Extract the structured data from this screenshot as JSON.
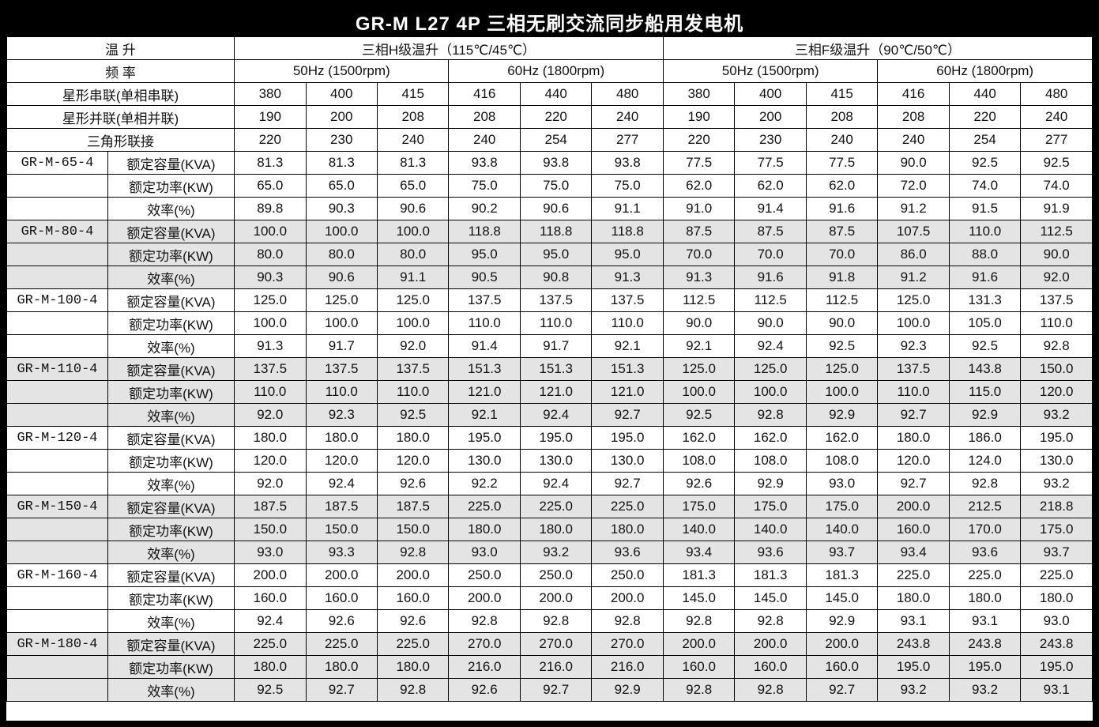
{
  "title": "GR-M L27 4P 三相无刷交流同步船用发电机",
  "colors": {
    "frame": "#000000",
    "title_bg": "#000000",
    "title_fg": "#ffffff",
    "row_base": "#ffffff",
    "row_alt": "#e4e4e4",
    "border": "#000000"
  },
  "header": {
    "temp_rise_label": "温    升",
    "freq_label": "频    率",
    "h_class_label": "三相H级温升（115℃/45℃）",
    "f_class_label": "三相F级温升（90℃/50℃）",
    "freq_groups": [
      "50Hz (1500rpm)",
      "60Hz (1800rpm)",
      "50Hz (1500rpm)",
      "60Hz (1800rpm)"
    ]
  },
  "connection_rows": [
    {
      "label": "星形串联(单相串联)",
      "values": [
        "380",
        "400",
        "415",
        "416",
        "440",
        "480",
        "380",
        "400",
        "415",
        "416",
        "440",
        "480"
      ]
    },
    {
      "label": "星形并联(单相并联)",
      "values": [
        "190",
        "200",
        "208",
        "208",
        "220",
        "240",
        "190",
        "200",
        "208",
        "208",
        "220",
        "240"
      ]
    },
    {
      "label": "三角形联接",
      "values": [
        "220",
        "230",
        "240",
        "240",
        "254",
        "277",
        "220",
        "230",
        "240",
        "240",
        "254",
        "277"
      ]
    }
  ],
  "row_labels": {
    "kva": "额定容量(KVA)",
    "kw": "额定功率(KW)",
    "eff": "效率(%)"
  },
  "models": [
    {
      "name": "GR-M-65-4",
      "kva": [
        "81.3",
        "81.3",
        "81.3",
        "93.8",
        "93.8",
        "93.8",
        "77.5",
        "77.5",
        "77.5",
        "90.0",
        "92.5",
        "92.5"
      ],
      "kw": [
        "65.0",
        "65.0",
        "65.0",
        "75.0",
        "75.0",
        "75.0",
        "62.0",
        "62.0",
        "62.0",
        "72.0",
        "74.0",
        "74.0"
      ],
      "eff": [
        "89.8",
        "90.3",
        "90.6",
        "90.2",
        "90.6",
        "91.1",
        "91.0",
        "91.4",
        "91.6",
        "91.2",
        "91.5",
        "91.9"
      ]
    },
    {
      "name": "GR-M-80-4",
      "kva": [
        "100.0",
        "100.0",
        "100.0",
        "118.8",
        "118.8",
        "118.8",
        "87.5",
        "87.5",
        "87.5",
        "107.5",
        "110.0",
        "112.5"
      ],
      "kw": [
        "80.0",
        "80.0",
        "80.0",
        "95.0",
        "95.0",
        "95.0",
        "70.0",
        "70.0",
        "70.0",
        "86.0",
        "88.0",
        "90.0"
      ],
      "eff": [
        "90.3",
        "90.6",
        "91.1",
        "90.5",
        "90.8",
        "91.3",
        "91.3",
        "91.6",
        "91.8",
        "91.2",
        "91.6",
        "92.0"
      ]
    },
    {
      "name": "GR-M-100-4",
      "kva": [
        "125.0",
        "125.0",
        "125.0",
        "137.5",
        "137.5",
        "137.5",
        "112.5",
        "112.5",
        "112.5",
        "125.0",
        "131.3",
        "137.5"
      ],
      "kw": [
        "100.0",
        "100.0",
        "100.0",
        "110.0",
        "110.0",
        "110.0",
        "90.0",
        "90.0",
        "90.0",
        "100.0",
        "105.0",
        "110.0"
      ],
      "eff": [
        "91.3",
        "91.7",
        "92.0",
        "91.4",
        "91.7",
        "92.1",
        "92.1",
        "92.4",
        "92.5",
        "92.3",
        "92.5",
        "92.8"
      ]
    },
    {
      "name": "GR-M-110-4",
      "kva": [
        "137.5",
        "137.5",
        "137.5",
        "151.3",
        "151.3",
        "151.3",
        "125.0",
        "125.0",
        "125.0",
        "137.5",
        "143.8",
        "150.0"
      ],
      "kw": [
        "110.0",
        "110.0",
        "110.0",
        "121.0",
        "121.0",
        "121.0",
        "100.0",
        "100.0",
        "100.0",
        "110.0",
        "115.0",
        "120.0"
      ],
      "eff": [
        "92.0",
        "92.3",
        "92.5",
        "92.1",
        "92.4",
        "92.7",
        "92.5",
        "92.8",
        "92.9",
        "92.7",
        "92.9",
        "93.2"
      ]
    },
    {
      "name": "GR-M-120-4",
      "kva": [
        "180.0",
        "180.0",
        "180.0",
        "195.0",
        "195.0",
        "195.0",
        "162.0",
        "162.0",
        "162.0",
        "180.0",
        "186.0",
        "195.0"
      ],
      "kw": [
        "120.0",
        "120.0",
        "120.0",
        "130.0",
        "130.0",
        "130.0",
        "108.0",
        "108.0",
        "108.0",
        "120.0",
        "124.0",
        "130.0"
      ],
      "eff": [
        "92.0",
        "92.4",
        "92.6",
        "92.2",
        "92.4",
        "92.7",
        "92.6",
        "92.9",
        "93.0",
        "92.7",
        "92.8",
        "93.2"
      ]
    },
    {
      "name": "GR-M-150-4",
      "kva": [
        "187.5",
        "187.5",
        "187.5",
        "225.0",
        "225.0",
        "225.0",
        "175.0",
        "175.0",
        "175.0",
        "200.0",
        "212.5",
        "218.8"
      ],
      "kw": [
        "150.0",
        "150.0",
        "150.0",
        "180.0",
        "180.0",
        "180.0",
        "140.0",
        "140.0",
        "140.0",
        "160.0",
        "170.0",
        "175.0"
      ],
      "eff": [
        "93.0",
        "93.3",
        "92.8",
        "93.0",
        "93.2",
        "93.6",
        "93.4",
        "93.6",
        "93.7",
        "93.4",
        "93.6",
        "93.7"
      ]
    },
    {
      "name": "GR-M-160-4",
      "kva": [
        "200.0",
        "200.0",
        "200.0",
        "250.0",
        "250.0",
        "250.0",
        "181.3",
        "181.3",
        "181.3",
        "225.0",
        "225.0",
        "225.0"
      ],
      "kw": [
        "160.0",
        "160.0",
        "160.0",
        "200.0",
        "200.0",
        "200.0",
        "145.0",
        "145.0",
        "145.0",
        "180.0",
        "180.0",
        "180.0"
      ],
      "eff": [
        "92.4",
        "92.6",
        "92.6",
        "92.8",
        "92.8",
        "92.8",
        "92.8",
        "92.8",
        "92.9",
        "93.1",
        "93.1",
        "93.0"
      ]
    },
    {
      "name": "GR-M-180-4",
      "kva": [
        "225.0",
        "225.0",
        "225.0",
        "270.0",
        "270.0",
        "270.0",
        "200.0",
        "200.0",
        "200.0",
        "243.8",
        "243.8",
        "243.8"
      ],
      "kw": [
        "180.0",
        "180.0",
        "180.0",
        "216.0",
        "216.0",
        "216.0",
        "160.0",
        "160.0",
        "160.0",
        "195.0",
        "195.0",
        "195.0"
      ],
      "eff": [
        "92.5",
        "92.7",
        "92.8",
        "92.6",
        "92.7",
        "92.9",
        "92.8",
        "92.8",
        "92.7",
        "93.2",
        "93.2",
        "93.1"
      ]
    }
  ]
}
